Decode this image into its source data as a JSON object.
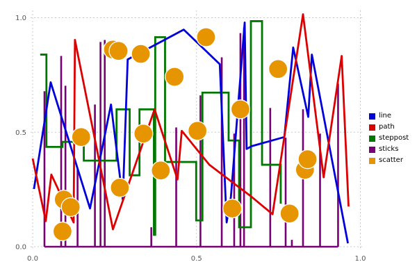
{
  "chart_data": {
    "type": "mixed",
    "title": "",
    "xlabel": "",
    "ylabel": "",
    "grid": true,
    "gridline_color": "#c8c8d0",
    "tick_label_color": "#555555",
    "xticks": [
      "0.0",
      "0.5",
      "1.0"
    ],
    "yticks": [
      "0.0",
      "0.5",
      "1.0"
    ],
    "xtick_values": [
      0.0,
      0.5,
      1.0
    ],
    "ytick_values": [
      0.0,
      0.5,
      1.0
    ],
    "xlim": [
      -0.01,
      1.02
    ],
    "ylim": [
      0.0,
      1.03
    ],
    "legend": {
      "position": "right"
    },
    "series": [
      {
        "name": "sticks",
        "type": "sticks",
        "color": "#770077",
        "baseline": 0.0,
        "points": [
          [
            0.036,
            0.679
          ],
          [
            0.087,
            0.833
          ],
          [
            0.1,
            0.703
          ],
          [
            0.137,
            0.342
          ],
          [
            0.19,
            0.621
          ],
          [
            0.207,
            0.894
          ],
          [
            0.22,
            0.903
          ],
          [
            0.362,
            0.085
          ],
          [
            0.438,
            0.521
          ],
          [
            0.512,
            0.661
          ],
          [
            0.577,
            0.827
          ],
          [
            0.615,
            0.494
          ],
          [
            0.634,
            0.933
          ],
          [
            0.645,
            0.958
          ],
          [
            0.725,
            0.606
          ],
          [
            0.772,
            0.476
          ],
          [
            0.791,
            0.03
          ],
          [
            0.825,
            0.6
          ],
          [
            0.877,
            0.494
          ],
          [
            0.932,
            0.712
          ]
        ]
      },
      {
        "name": "steppost",
        "type": "steps-post",
        "color": "#007700",
        "points": [
          [
            0.023,
            0.839
          ],
          [
            0.042,
            0.436
          ],
          [
            0.091,
            0.458
          ],
          [
            0.156,
            0.376
          ],
          [
            0.256,
            0.6
          ],
          [
            0.296,
            0.312
          ],
          [
            0.326,
            0.6
          ],
          [
            0.37,
            0.052
          ],
          [
            0.374,
            0.915
          ],
          [
            0.404,
            0.37
          ],
          [
            0.499,
            0.115
          ],
          [
            0.518,
            0.673
          ],
          [
            0.598,
            0.464
          ],
          [
            0.63,
            0.085
          ],
          [
            0.666,
            0.985
          ],
          [
            0.7,
            0.358
          ],
          [
            0.757,
            0.188
          ]
        ]
      },
      {
        "name": "line",
        "type": "line",
        "color": "#0000dd",
        "points": [
          [
            0.004,
            0.252
          ],
          [
            0.055,
            0.718
          ],
          [
            0.175,
            0.167
          ],
          [
            0.239,
            0.621
          ],
          [
            0.275,
            0.206
          ],
          [
            0.29,
            0.818
          ],
          [
            0.461,
            0.948
          ],
          [
            0.571,
            0.797
          ],
          [
            0.592,
            0.106
          ],
          [
            0.605,
            0.218
          ],
          [
            0.647,
            0.979
          ],
          [
            0.653,
            0.427
          ],
          [
            0.668,
            0.439
          ],
          [
            0.768,
            0.479
          ],
          [
            0.795,
            0.87
          ],
          [
            0.841,
            0.567
          ],
          [
            0.852,
            0.839
          ],
          [
            0.962,
            0.015
          ]
        ]
      },
      {
        "name": "path",
        "type": "line",
        "color": "#dd0000",
        "points": [
          [
            0.0,
            0.385
          ],
          [
            0.04,
            0.112
          ],
          [
            0.057,
            0.315
          ],
          [
            0.125,
            0.106
          ],
          [
            0.129,
            0.903
          ],
          [
            0.245,
            0.076
          ],
          [
            0.372,
            0.6
          ],
          [
            0.442,
            0.294
          ],
          [
            0.455,
            0.506
          ],
          [
            0.539,
            0.358
          ],
          [
            0.668,
            0.218
          ],
          [
            0.732,
            0.142
          ],
          [
            0.825,
            1.015
          ],
          [
            0.888,
            0.303
          ],
          [
            0.943,
            0.833
          ],
          [
            0.964,
            0.176
          ]
        ]
      },
      {
        "name": "scatter",
        "type": "scatter",
        "color": "#e69500",
        "marker_radius": 13.5,
        "points": [
          [
            0.091,
            0.067
          ],
          [
            0.095,
            0.206
          ],
          [
            0.116,
            0.173
          ],
          [
            0.148,
            0.479
          ],
          [
            0.245,
            0.861
          ],
          [
            0.262,
            0.855
          ],
          [
            0.266,
            0.258
          ],
          [
            0.33,
            0.842
          ],
          [
            0.338,
            0.494
          ],
          [
            0.391,
            0.333
          ],
          [
            0.433,
            0.742
          ],
          [
            0.503,
            0.506
          ],
          [
            0.529,
            0.915
          ],
          [
            0.609,
            0.167
          ],
          [
            0.634,
            0.6
          ],
          [
            0.749,
            0.776
          ],
          [
            0.784,
            0.145
          ],
          [
            0.831,
            0.336
          ],
          [
            0.839,
            0.382
          ]
        ]
      }
    ],
    "legend_entries": [
      {
        "label": "line",
        "color": "#0000dd"
      },
      {
        "label": "path",
        "color": "#dd0000"
      },
      {
        "label": "steppost",
        "color": "#007700"
      },
      {
        "label": "sticks",
        "color": "#770077"
      },
      {
        "label": "scatter",
        "color": "#e69500"
      }
    ]
  }
}
